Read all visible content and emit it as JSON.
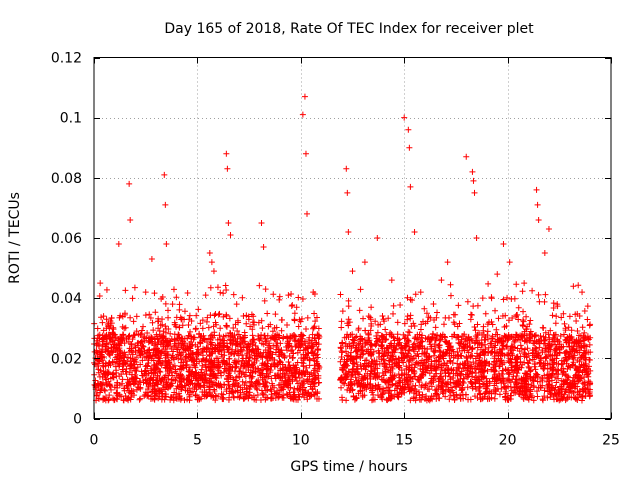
{
  "chart_data": {
    "type": "scatter",
    "title": "Day 165 of 2018, Rate Of TEC Index for receiver plet",
    "xlabel": "GPS time / hours",
    "ylabel": "ROTI / TECUs",
    "xlim": [
      0,
      25
    ],
    "ylim": [
      0,
      0.12
    ],
    "xticks": [
      0,
      5,
      10,
      15,
      20,
      25
    ],
    "xtick_labels": [
      "0",
      "5",
      "10",
      "15",
      "20",
      "25"
    ],
    "yticks": [
      0,
      0.02,
      0.04,
      0.06,
      0.08,
      0.1,
      0.12
    ],
    "ytick_labels": [
      "0",
      "0.02",
      "0.04",
      "0.06",
      "0.08",
      "0.1",
      "0.12"
    ],
    "grid": true,
    "marker": "+",
    "color": "#ff0000",
    "data_gap_hours": [
      10.9,
      11.9
    ],
    "series": [
      {
        "name": "ROTI",
        "x": [
          0.05,
          0.3,
          0.6,
          0.9,
          1.2,
          1.5,
          1.7,
          1.75,
          2.1,
          2.5,
          2.8,
          3.1,
          3.4,
          3.45,
          3.5,
          3.8,
          4.2,
          4.6,
          5.0,
          5.4,
          5.6,
          5.7,
          5.8,
          6.1,
          6.4,
          6.45,
          6.5,
          6.6,
          6.9,
          7.3,
          7.7,
          8.1,
          8.2,
          8.3,
          8.6,
          9.0,
          9.4,
          9.8,
          10.1,
          10.2,
          10.25,
          10.3,
          10.6,
          10.8,
          12.0,
          12.2,
          12.25,
          12.3,
          12.5,
          12.8,
          13.1,
          13.4,
          13.7,
          14.0,
          14.4,
          14.7,
          15.0,
          15.2,
          15.25,
          15.3,
          15.5,
          15.8,
          16.1,
          16.4,
          16.8,
          17.1,
          17.4,
          17.7,
          18.0,
          18.3,
          18.35,
          18.4,
          18.5,
          18.8,
          19.1,
          19.5,
          19.8,
          20.1,
          20.4,
          20.8,
          21.1,
          21.4,
          21.45,
          21.5,
          21.8,
          22.0,
          22.4,
          22.8,
          23.2,
          23.6,
          23.9
        ],
        "y": [
          0.018,
          0.045,
          0.03,
          0.022,
          0.058,
          0.035,
          0.078,
          0.066,
          0.025,
          0.042,
          0.053,
          0.03,
          0.081,
          0.071,
          0.058,
          0.038,
          0.026,
          0.033,
          0.022,
          0.041,
          0.055,
          0.052,
          0.049,
          0.03,
          0.088,
          0.083,
          0.065,
          0.061,
          0.038,
          0.025,
          0.034,
          0.065,
          0.057,
          0.043,
          0.027,
          0.022,
          0.041,
          0.037,
          0.101,
          0.107,
          0.088,
          0.068,
          0.042,
          0.028,
          0.022,
          0.083,
          0.075,
          0.062,
          0.049,
          0.03,
          0.052,
          0.037,
          0.06,
          0.033,
          0.046,
          0.026,
          0.1,
          0.096,
          0.09,
          0.077,
          0.062,
          0.042,
          0.035,
          0.028,
          0.046,
          0.052,
          0.032,
          0.025,
          0.087,
          0.082,
          0.079,
          0.075,
          0.06,
          0.04,
          0.032,
          0.048,
          0.058,
          0.052,
          0.034,
          0.045,
          0.028,
          0.076,
          0.071,
          0.066,
          0.055,
          0.063,
          0.038,
          0.03,
          0.025,
          0.042,
          0.022
        ]
      }
    ]
  }
}
